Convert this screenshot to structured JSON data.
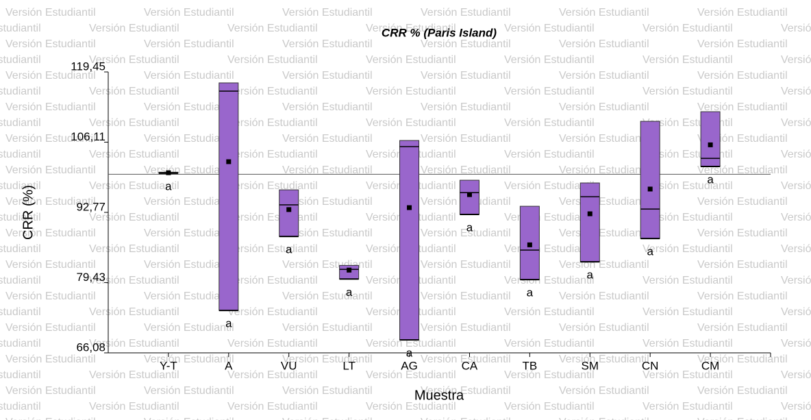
{
  "watermark": "Versión Estudiantil",
  "chart_data": {
    "type": "box",
    "title": "CRR % (Paris Island)",
    "x_label": "Muestra",
    "y_label": "CRR (%)",
    "categories": [
      "Y-T",
      "A",
      "VU",
      "LT",
      "AG",
      "CA",
      "TB",
      "SM",
      "CN",
      "CM"
    ],
    "max": [
      100.4,
      117.37,
      97.05,
      82.7,
      106.43,
      98.88,
      93.93,
      98.36,
      110.07,
      111.9
    ],
    "min": [
      100.2,
      74.14,
      88.2,
      80.1,
      68.54,
      92.37,
      79.99,
      83.38,
      87.81,
      101.48
    ],
    "median": [
      100.3,
      115.8,
      94.2,
      81.95,
      105.26,
      96.53,
      85.6,
      95.75,
      93.4,
      103.04
    ],
    "mean": [
      100.3,
      102.4,
      93.3,
      81.8,
      93.67,
      96.14,
      86.6,
      92.5,
      97.2,
      105.6
    ],
    "group_labels": [
      "a",
      "a",
      "a",
      "a",
      "a",
      "a",
      "a",
      "a",
      "a",
      "a"
    ],
    "reference_line": 100,
    "color": "#9966cc",
    "ylim": [
      66.08,
      119.45
    ],
    "yticks": [
      {
        "value": 66.08,
        "label": "66,08"
      },
      {
        "value": 79.43,
        "label": "79,43"
      },
      {
        "value": 92.77,
        "label": "92,77"
      },
      {
        "value": 106.11,
        "label": "106,11"
      },
      {
        "value": 119.45,
        "label": "119,45"
      }
    ]
  }
}
